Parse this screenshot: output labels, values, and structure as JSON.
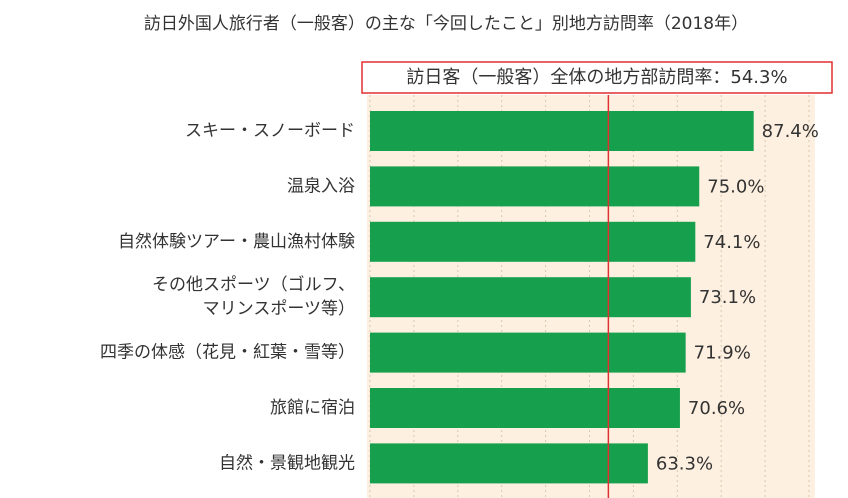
{
  "chart_data": {
    "type": "bar",
    "orientation": "horizontal",
    "title": "訪日外国人旅行者（一般客）の主な「今回したこと」別地方訪問率（2018年）",
    "categories": [
      "スキー・スノーボード",
      "温泉入浴",
      "自然体験ツアー・農山漁村体験",
      "その他スポーツ（ゴルフ、\nマリンスポーツ等）",
      "四季の体感（花見・紅葉・雪等）",
      "旅館に宿泊",
      "自然・景観地観光"
    ],
    "values": [
      87.4,
      75.0,
      74.1,
      73.1,
      71.9,
      70.6,
      63.3
    ],
    "value_labels": [
      "87.4%",
      "75.0%",
      "74.1%",
      "73.1%",
      "71.9%",
      "70.6%",
      "63.3%"
    ],
    "color": "#16a04e",
    "xlim": [
      0,
      100
    ],
    "xticks": [
      0,
      10,
      20,
      30,
      40,
      50,
      60,
      70,
      80,
      90,
      100
    ],
    "grid": true,
    "reference": {
      "value": 54.3,
      "label": "訪日客（一般客）全体の地方部訪問率：54.3%",
      "color": "#e03030"
    }
  }
}
